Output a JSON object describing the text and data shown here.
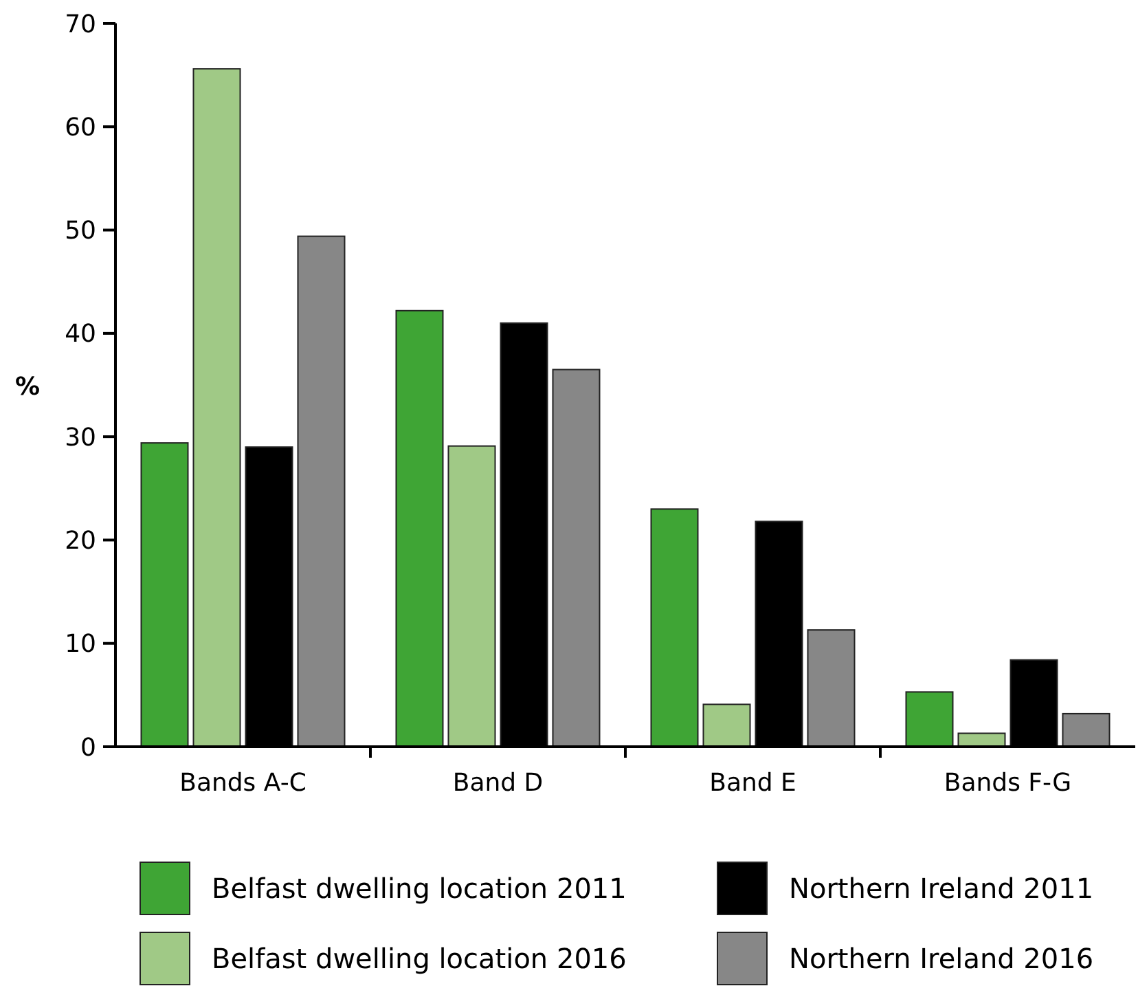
{
  "chart_data": {
    "type": "bar",
    "ylabel": "%",
    "categories": [
      "Bands A-C",
      "Band D",
      "Band E",
      "Bands F-G"
    ],
    "series": [
      {
        "name": "Belfast dwelling location 2011",
        "color": "#3fa535",
        "values": [
          29.4,
          42.2,
          23.0,
          5.3
        ]
      },
      {
        "name": "Belfast dwelling location 2016",
        "color": "#a0c986",
        "values": [
          65.6,
          29.1,
          4.1,
          1.3
        ]
      },
      {
        "name": "Northern Ireland 2011",
        "color": "#000000",
        "values": [
          29.0,
          41.0,
          21.8,
          8.4
        ]
      },
      {
        "name": "Northern Ireland 2016",
        "color": "#878787",
        "values": [
          49.4,
          36.5,
          11.3,
          3.2
        ]
      }
    ],
    "ylim": [
      0,
      70
    ],
    "yticks": [
      0,
      10,
      20,
      30,
      40,
      50,
      60,
      70
    ],
    "grid": false,
    "legend": "bottom"
  }
}
